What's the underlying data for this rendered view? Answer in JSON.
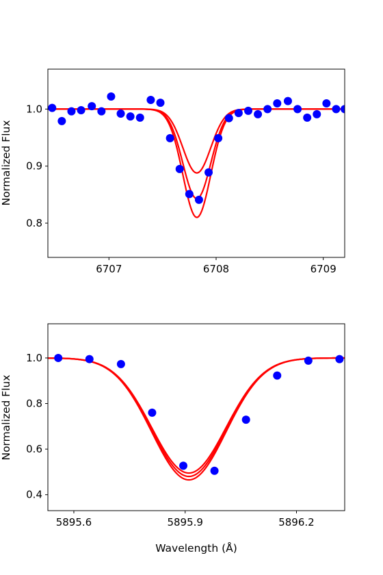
{
  "colors": {
    "model_line": "#ff0000",
    "observed_points": "#0000ff",
    "axes": "#000000"
  },
  "chart_data": [
    {
      "type": "line",
      "title": "",
      "xlabel": "",
      "ylabel": "Normalized Flux",
      "xlim": [
        6706.43,
        6709.2
      ],
      "ylim": [
        0.74,
        1.07
      ],
      "xticks": [
        6707,
        6708,
        6709
      ],
      "xtick_labels": [
        "6707",
        "6708",
        "6709"
      ],
      "yticks": [
        0.8,
        0.9,
        1.0
      ],
      "ytick_labels": [
        "0.8",
        "0.9",
        "1.0"
      ],
      "grid": false,
      "legend": "none",
      "model_lines": {
        "center": 6707.82,
        "sigma": 0.13,
        "x_range": [
          6706.43,
          6709.2
        ],
        "depths": [
          0.112,
          0.157,
          0.19
        ]
      },
      "points": {
        "x": [
          6706.47,
          6706.56,
          6706.65,
          6706.74,
          6706.84,
          6706.93,
          6707.02,
          6707.11,
          6707.2,
          6707.29,
          6707.39,
          6707.48,
          6707.57,
          6707.66,
          6707.75,
          6707.84,
          6707.93,
          6708.02,
          6708.12,
          6708.21,
          6708.3,
          6708.39,
          6708.48,
          6708.57,
          6708.67,
          6708.76,
          6708.85,
          6708.94,
          6709.03,
          6709.12,
          6709.2
        ],
        "y": [
          1.002,
          0.979,
          0.996,
          0.998,
          1.005,
          0.996,
          1.022,
          0.992,
          0.987,
          0.985,
          1.016,
          1.011,
          0.949,
          0.895,
          0.851,
          0.841,
          0.889,
          0.949,
          0.984,
          0.993,
          0.997,
          0.991,
          1.0,
          1.01,
          1.014,
          1.0,
          0.985,
          0.991,
          1.01,
          1.0,
          1.0
        ]
      }
    },
    {
      "type": "line",
      "title": "",
      "xlabel": "Wavelength (Å)",
      "ylabel": "Normalized Flux",
      "xlim": [
        5895.53,
        5896.33
      ],
      "ylim": [
        0.33,
        1.15
      ],
      "xticks": [
        5895.6,
        5895.9,
        5896.2
      ],
      "xtick_labels": [
        "5895.6",
        "5895.9",
        "5896.2"
      ],
      "yticks": [
        0.4,
        0.6,
        0.8,
        1.0
      ],
      "ytick_labels": [
        "0.4",
        "0.6",
        "0.8",
        "1.0"
      ],
      "grid": false,
      "legend": "none",
      "model_lines": {
        "center": 5895.91,
        "sigma": 0.1,
        "x_range": [
          5895.53,
          5896.33
        ],
        "depths": [
          0.505,
          0.52,
          0.535
        ]
      },
      "points": {
        "x": [
          5895.558,
          5895.642,
          5895.727,
          5895.811,
          5895.895,
          5895.979,
          5896.064,
          5896.148,
          5896.232,
          5896.316
        ],
        "y": [
          1.0,
          0.995,
          0.973,
          0.76,
          0.527,
          0.505,
          0.729,
          0.923,
          0.988,
          0.995
        ]
      }
    }
  ]
}
